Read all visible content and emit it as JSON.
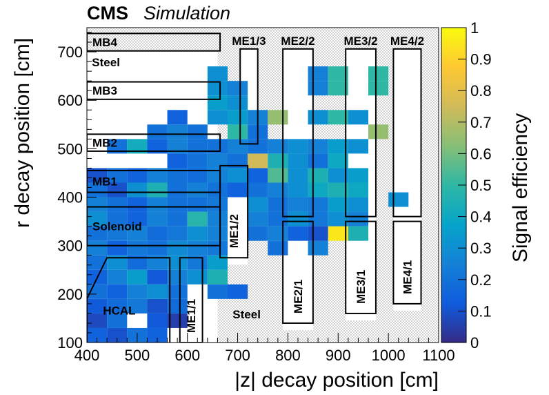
{
  "header": {
    "experiment": "CMS",
    "status": "Simulation"
  },
  "chart_data": {
    "type": "heatmap",
    "xlabel": "|z| decay position [cm]",
    "ylabel": "r decay position [cm]",
    "zlabel": "Signal efficiency",
    "xlim": [
      400,
      1100
    ],
    "ylim": [
      100,
      750
    ],
    "zlim": [
      0,
      1
    ],
    "x_ticks": [
      400,
      500,
      600,
      700,
      800,
      900,
      1000,
      1100
    ],
    "y_ticks": [
      100,
      200,
      300,
      400,
      500,
      600,
      700
    ],
    "z_ticks": [
      0,
      0.1,
      0.2,
      0.3,
      0.4,
      0.5,
      0.6,
      0.7,
      0.8,
      0.9,
      1
    ],
    "cell_size": {
      "dz": 40,
      "dr": 30
    },
    "cells": [
      {
        "z": 400,
        "r": 100,
        "v": 0.15
      },
      {
        "z": 440,
        "r": 100,
        "v": 0.1
      },
      {
        "z": 480,
        "r": 100,
        "v": 0.2
      },
      {
        "z": 520,
        "r": 100,
        "v": 0.15
      },
      {
        "z": 400,
        "r": 130,
        "v": 0.08
      },
      {
        "z": 440,
        "r": 130,
        "v": 0.2
      },
      {
        "z": 520,
        "r": 130,
        "v": 0.12
      },
      {
        "z": 560,
        "r": 130,
        "v": 0.05
      },
      {
        "z": 400,
        "r": 160,
        "v": 0.12
      },
      {
        "z": 440,
        "r": 160,
        "v": 0.18
      },
      {
        "z": 480,
        "r": 160,
        "v": 0.22
      },
      {
        "z": 520,
        "r": 160,
        "v": 0.1
      },
      {
        "z": 560,
        "r": 160,
        "v": 0.18
      },
      {
        "z": 400,
        "r": 190,
        "v": 0.2
      },
      {
        "z": 440,
        "r": 190,
        "v": 0.15
      },
      {
        "z": 480,
        "r": 190,
        "v": 0.25
      },
      {
        "z": 520,
        "r": 190,
        "v": 0.3
      },
      {
        "z": 560,
        "r": 190,
        "v": 0.2
      },
      {
        "z": 640,
        "r": 190,
        "v": 0.2
      },
      {
        "z": 680,
        "r": 190,
        "v": 0.15
      },
      {
        "z": 400,
        "r": 220,
        "v": 0.15
      },
      {
        "z": 440,
        "r": 220,
        "v": 0.25
      },
      {
        "z": 480,
        "r": 220,
        "v": 0.35
      },
      {
        "z": 520,
        "r": 220,
        "v": 0.12
      },
      {
        "z": 560,
        "r": 220,
        "v": 0.25
      },
      {
        "z": 600,
        "r": 220,
        "v": 0.3
      },
      {
        "z": 640,
        "r": 220,
        "v": 0.45
      },
      {
        "z": 400,
        "r": 250,
        "v": 0.2
      },
      {
        "z": 440,
        "r": 250,
        "v": 0.3
      },
      {
        "z": 480,
        "r": 250,
        "v": 0.18
      },
      {
        "z": 520,
        "r": 250,
        "v": 0.25
      },
      {
        "z": 560,
        "r": 250,
        "v": 0.3
      },
      {
        "z": 600,
        "r": 250,
        "v": 0.22
      },
      {
        "z": 640,
        "r": 250,
        "v": 0.35
      },
      {
        "z": 400,
        "r": 280,
        "v": 0.25
      },
      {
        "z": 440,
        "r": 280,
        "v": 0.15
      },
      {
        "z": 480,
        "r": 280,
        "v": 0.22
      },
      {
        "z": 520,
        "r": 280,
        "v": 0.2
      },
      {
        "z": 560,
        "r": 280,
        "v": 0.28
      },
      {
        "z": 600,
        "r": 280,
        "v": 0.25
      },
      {
        "z": 640,
        "r": 280,
        "v": 0.22
      },
      {
        "z": 760,
        "r": 280,
        "v": 0.2
      },
      {
        "z": 840,
        "r": 280,
        "v": 0.25
      },
      {
        "z": 400,
        "r": 310,
        "v": 0.2
      },
      {
        "z": 440,
        "r": 310,
        "v": 0.22
      },
      {
        "z": 480,
        "r": 310,
        "v": 0.25
      },
      {
        "z": 520,
        "r": 310,
        "v": 0.18
      },
      {
        "z": 560,
        "r": 310,
        "v": 0.22
      },
      {
        "z": 600,
        "r": 310,
        "v": 0.3
      },
      {
        "z": 640,
        "r": 310,
        "v": 0.25
      },
      {
        "z": 720,
        "r": 310,
        "v": 0.2
      },
      {
        "z": 760,
        "r": 310,
        "v": 0.25
      },
      {
        "z": 800,
        "r": 310,
        "v": 0.15
      },
      {
        "z": 840,
        "r": 310,
        "v": 0.1
      },
      {
        "z": 880,
        "r": 310,
        "v": 0.95
      },
      {
        "z": 920,
        "r": 310,
        "v": 0.45
      },
      {
        "z": 400,
        "r": 340,
        "v": 0.3
      },
      {
        "z": 440,
        "r": 340,
        "v": 0.2
      },
      {
        "z": 480,
        "r": 340,
        "v": 0.15
      },
      {
        "z": 520,
        "r": 340,
        "v": 0.25
      },
      {
        "z": 560,
        "r": 340,
        "v": 0.2
      },
      {
        "z": 600,
        "r": 340,
        "v": 0.48
      },
      {
        "z": 640,
        "r": 340,
        "v": 0.25
      },
      {
        "z": 720,
        "r": 340,
        "v": 0.25
      },
      {
        "z": 760,
        "r": 340,
        "v": 0.2
      },
      {
        "z": 800,
        "r": 340,
        "v": 0.3
      },
      {
        "z": 840,
        "r": 340,
        "v": 0.22
      },
      {
        "z": 880,
        "r": 340,
        "v": 0.3
      },
      {
        "z": 920,
        "r": 340,
        "v": 0.25
      },
      {
        "z": 400,
        "r": 370,
        "v": 0.25
      },
      {
        "z": 440,
        "r": 370,
        "v": 0.2
      },
      {
        "z": 480,
        "r": 370,
        "v": 0.15
      },
      {
        "z": 520,
        "r": 370,
        "v": 0.25
      },
      {
        "z": 560,
        "r": 370,
        "v": 0.2
      },
      {
        "z": 600,
        "r": 370,
        "v": 0.2
      },
      {
        "z": 640,
        "r": 370,
        "v": 0.22
      },
      {
        "z": 720,
        "r": 370,
        "v": 0.3
      },
      {
        "z": 760,
        "r": 370,
        "v": 0.2
      },
      {
        "z": 800,
        "r": 370,
        "v": 0.25
      },
      {
        "z": 840,
        "r": 370,
        "v": 0.22
      },
      {
        "z": 880,
        "r": 370,
        "v": 0.35
      },
      {
        "z": 920,
        "r": 370,
        "v": 0.3
      },
      {
        "z": 400,
        "r": 400,
        "v": 0.2
      },
      {
        "z": 440,
        "r": 400,
        "v": 0.1
      },
      {
        "z": 480,
        "r": 400,
        "v": 0.3
      },
      {
        "z": 520,
        "r": 400,
        "v": 0.45
      },
      {
        "z": 560,
        "r": 400,
        "v": 0.2
      },
      {
        "z": 600,
        "r": 400,
        "v": 0.25
      },
      {
        "z": 640,
        "r": 400,
        "v": 0.2
      },
      {
        "z": 680,
        "r": 400,
        "v": 0.15
      },
      {
        "z": 720,
        "r": 400,
        "v": 0.2
      },
      {
        "z": 760,
        "r": 400,
        "v": 0.25
      },
      {
        "z": 800,
        "r": 400,
        "v": 0.3
      },
      {
        "z": 840,
        "r": 400,
        "v": 0.4
      },
      {
        "z": 880,
        "r": 400,
        "v": 0.45
      },
      {
        "z": 920,
        "r": 400,
        "v": 0.4
      },
      {
        "z": 1000,
        "r": 380,
        "v": 0.3
      },
      {
        "z": 400,
        "r": 430,
        "v": 0.1
      },
      {
        "z": 440,
        "r": 430,
        "v": 0.2
      },
      {
        "z": 480,
        "r": 430,
        "v": 0.15
      },
      {
        "z": 520,
        "r": 430,
        "v": 0.25
      },
      {
        "z": 560,
        "r": 430,
        "v": 0.2
      },
      {
        "z": 600,
        "r": 430,
        "v": 0.18
      },
      {
        "z": 640,
        "r": 430,
        "v": 0.25
      },
      {
        "z": 680,
        "r": 430,
        "v": 0.3
      },
      {
        "z": 720,
        "r": 430,
        "v": 0.15
      },
      {
        "z": 760,
        "r": 430,
        "v": 0.55
      },
      {
        "z": 800,
        "r": 430,
        "v": 0.3
      },
      {
        "z": 840,
        "r": 430,
        "v": 0.45
      },
      {
        "z": 880,
        "r": 430,
        "v": 0.3
      },
      {
        "z": 920,
        "r": 430,
        "v": 0.35
      },
      {
        "z": 560,
        "r": 460,
        "v": 0.15
      },
      {
        "z": 600,
        "r": 460,
        "v": 0.2
      },
      {
        "z": 640,
        "r": 460,
        "v": 0.25
      },
      {
        "z": 680,
        "r": 460,
        "v": 0.2
      },
      {
        "z": 720,
        "r": 460,
        "v": 0.75
      },
      {
        "z": 760,
        "r": 460,
        "v": 0.45
      },
      {
        "z": 800,
        "r": 460,
        "v": 0.3
      },
      {
        "z": 840,
        "r": 460,
        "v": 0.2
      },
      {
        "z": 880,
        "r": 460,
        "v": 0.4
      },
      {
        "z": 440,
        "r": 490,
        "v": 0.2
      },
      {
        "z": 480,
        "r": 490,
        "v": 0.42
      },
      {
        "z": 520,
        "r": 490,
        "v": 0.15
      },
      {
        "z": 560,
        "r": 490,
        "v": 0.25
      },
      {
        "z": 600,
        "r": 490,
        "v": 0.2
      },
      {
        "z": 640,
        "r": 490,
        "v": 0.2
      },
      {
        "z": 680,
        "r": 490,
        "v": 0.25
      },
      {
        "z": 720,
        "r": 490,
        "v": 0.2
      },
      {
        "z": 760,
        "r": 490,
        "v": 0.25
      },
      {
        "z": 800,
        "r": 490,
        "v": 0.3
      },
      {
        "z": 840,
        "r": 490,
        "v": 0.25
      },
      {
        "z": 880,
        "r": 490,
        "v": 0.35
      },
      {
        "z": 920,
        "r": 490,
        "v": 0.3
      },
      {
        "z": 520,
        "r": 520,
        "v": 0.2
      },
      {
        "z": 560,
        "r": 520,
        "v": 0.25
      },
      {
        "z": 600,
        "r": 520,
        "v": 0.2
      },
      {
        "z": 680,
        "r": 520,
        "v": 0.5
      },
      {
        "z": 720,
        "r": 520,
        "v": 0.2
      },
      {
        "z": 960,
        "r": 520,
        "v": 0.65
      },
      {
        "z": 560,
        "r": 550,
        "v": 0.15
      },
      {
        "z": 640,
        "r": 550,
        "v": 0.3
      },
      {
        "z": 680,
        "r": 550,
        "v": 0.35
      },
      {
        "z": 720,
        "r": 550,
        "v": 0.25
      },
      {
        "z": 760,
        "r": 550,
        "v": 0.65
      },
      {
        "z": 840,
        "r": 550,
        "v": 0.3
      },
      {
        "z": 880,
        "r": 550,
        "v": 0.5
      },
      {
        "z": 920,
        "r": 550,
        "v": 0.3
      },
      {
        "z": 640,
        "r": 580,
        "v": 0.35
      },
      {
        "z": 680,
        "r": 580,
        "v": 0.3
      },
      {
        "z": 640,
        "r": 610,
        "v": 0.3
      },
      {
        "z": 680,
        "r": 610,
        "v": 0.25
      },
      {
        "z": 840,
        "r": 610,
        "v": 0.25
      },
      {
        "z": 880,
        "r": 610,
        "v": 0.5
      },
      {
        "z": 960,
        "r": 610,
        "v": 0.5
      },
      {
        "z": 640,
        "r": 640,
        "v": 0.3
      },
      {
        "z": 840,
        "r": 640,
        "v": 0.25
      },
      {
        "z": 880,
        "r": 640,
        "v": 0.5
      },
      {
        "z": 960,
        "r": 640,
        "v": 0.5
      }
    ],
    "detector_regions": [
      {
        "label": "MB4",
        "z": [
          400,
          665
        ],
        "r": [
          702,
          738
        ]
      },
      {
        "label": "MB3",
        "z": [
          400,
          665
        ],
        "r": [
          602,
          638
        ]
      },
      {
        "label": "MB2",
        "z": [
          400,
          665
        ],
        "r": [
          495,
          530
        ]
      },
      {
        "label": "MB1",
        "z": [
          400,
          665
        ],
        "r": [
          410,
          455
        ]
      },
      {
        "label": "Solenoid",
        "z": [
          400,
          665
        ],
        "r": [
          300,
          380
        ]
      },
      {
        "label": "ME1/3",
        "z": [
          705,
          740
        ],
        "r": [
          510,
          706
        ]
      },
      {
        "label": "ME1/2",
        "z": [
          665,
          720
        ],
        "r": [
          275,
          465
        ]
      },
      {
        "label": "ME1/1",
        "z": [
          585,
          630
        ],
        "r": [
          100,
          275
        ]
      },
      {
        "label": "ME2/2",
        "z": [
          790,
          850
        ],
        "r": [
          360,
          706
        ]
      },
      {
        "label": "ME2/1",
        "z": [
          790,
          850
        ],
        "r": [
          140,
          350
        ]
      },
      {
        "label": "ME3/2",
        "z": [
          915,
          975
        ],
        "r": [
          360,
          706
        ]
      },
      {
        "label": "ME3/1",
        "z": [
          915,
          975
        ],
        "r": [
          160,
          350
        ]
      },
      {
        "label": "ME4/2",
        "z": [
          1010,
          1065
        ],
        "r": [
          360,
          706
        ]
      },
      {
        "label": "ME4/1",
        "z": [
          1010,
          1065
        ],
        "r": [
          180,
          350
        ]
      }
    ],
    "annotations": [
      {
        "text": "Steel",
        "z": 410,
        "r": 670
      },
      {
        "text": "Steel",
        "z": 690,
        "r": 150
      },
      {
        "text": "HCAL",
        "z": 432,
        "r": 158
      }
    ],
    "colors": {
      "palette": [
        "#352a87",
        "#0f5cdd",
        "#1481d6",
        "#06a4ca",
        "#2eb7a4",
        "#87bf77",
        "#d1bb59",
        "#fec832",
        "#f9fb0e"
      ],
      "hatch": "#c8c8c8",
      "frame": "#000000"
    }
  }
}
